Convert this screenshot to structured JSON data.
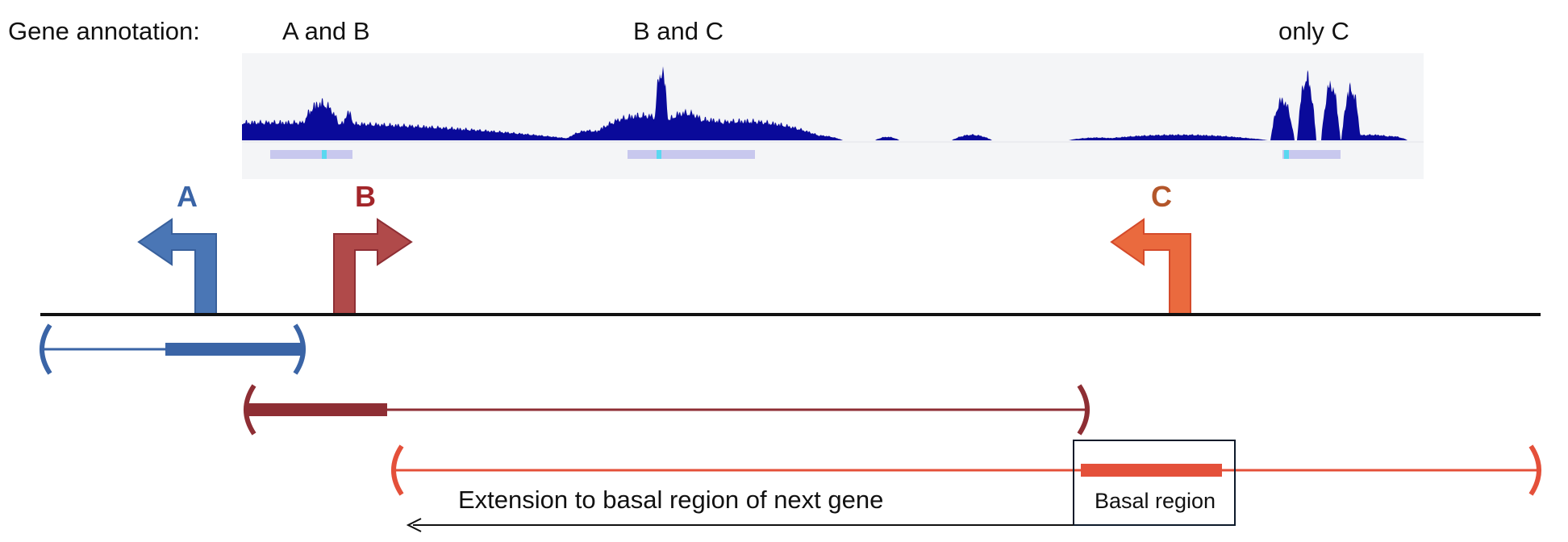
{
  "header": {
    "annotation_label": "Gene annotation:",
    "group_labels": [
      "A and B",
      "B and C",
      "only C"
    ]
  },
  "genes": [
    {
      "label": "A",
      "color": "#4a76b5",
      "dark": "#3a64a6"
    },
    {
      "label": "B",
      "color": "#b04a4a",
      "dark": "#8e2e34"
    },
    {
      "label": "C",
      "color": "#ea6a3e",
      "dark": "#e4503a"
    }
  ],
  "annotations": {
    "basal_region": "Basal region",
    "extension": "Extension to basal region of next gene"
  },
  "colors": {
    "track_fill": "#0a0a9a",
    "track_bg": "#f4f5f7",
    "peak_bar": "#c8c8ee",
    "peak_mark": "#5ad8f0",
    "axis": "#111111"
  }
}
